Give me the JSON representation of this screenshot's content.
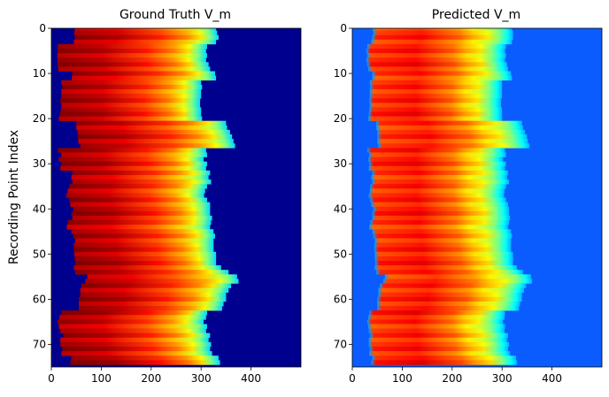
{
  "chart_data": [
    {
      "type": "heatmap",
      "title": "Ground Truth V_m",
      "xlabel": "",
      "ylabel": "Recording Point Index",
      "xlim": [
        0,
        500
      ],
      "ylim": [
        75,
        0
      ],
      "xticks": [
        0,
        100,
        200,
        300,
        400
      ],
      "yticks": [
        0,
        10,
        20,
        30,
        40,
        50,
        60,
        70
      ],
      "colormap": "jet",
      "background_color": "#00008f",
      "rows": 75,
      "cols": 500,
      "onset": [
        47,
        46,
        47,
        45,
        13,
        12,
        12,
        12,
        12,
        14,
        42,
        41,
        20,
        22,
        20,
        20,
        18,
        20,
        19,
        17,
        15,
        50,
        50,
        53,
        53,
        54,
        58,
        13,
        20,
        15,
        20,
        18,
        42,
        40,
        42,
        36,
        33,
        30,
        36,
        38,
        44,
        40,
        42,
        33,
        31,
        40,
        44,
        48,
        45,
        45,
        46,
        47,
        48,
        45,
        48,
        72,
        68,
        60,
        58,
        58,
        55,
        55,
        55,
        20,
        16,
        12,
        15,
        18,
        24,
        18,
        18,
        22,
        20,
        40,
        38
      ],
      "front": [
        330,
        332,
        335,
        330,
        312,
        310,
        312,
        310,
        315,
        318,
        328,
        330,
        300,
        302,
        300,
        300,
        298,
        298,
        300,
        300,
        302,
        350,
        352,
        358,
        362,
        365,
        368,
        310,
        312,
        305,
        312,
        310,
        318,
        315,
        320,
        312,
        308,
        306,
        312,
        318,
        318,
        318,
        322,
        320,
        318,
        325,
        328,
        325,
        325,
        325,
        330,
        330,
        330,
        340,
        355,
        372,
        375,
        360,
        355,
        350,
        350,
        345,
        342,
        312,
        310,
        305,
        312,
        310,
        318,
        315,
        320,
        318,
        322,
        335,
        338
      ]
    },
    {
      "type": "heatmap",
      "title": "Predicted V_m",
      "xlabel": "",
      "ylabel": "",
      "xlim": [
        0,
        500
      ],
      "ylim": [
        75,
        0
      ],
      "xticks": [
        0,
        100,
        200,
        300,
        400
      ],
      "yticks": [
        0,
        10,
        20,
        30,
        40,
        50,
        60,
        70
      ],
      "colormap": "jet",
      "background_color": "#0a5cff",
      "rows": 75,
      "cols": 500,
      "onset": [
        40,
        42,
        40,
        38,
        30,
        28,
        30,
        28,
        30,
        32,
        40,
        40,
        35,
        36,
        35,
        35,
        34,
        35,
        34,
        33,
        32,
        48,
        48,
        50,
        50,
        50,
        52,
        30,
        34,
        32,
        34,
        33,
        40,
        38,
        40,
        36,
        35,
        33,
        36,
        38,
        42,
        40,
        40,
        36,
        34,
        40,
        42,
        45,
        44,
        44,
        45,
        45,
        46,
        45,
        48,
        65,
        62,
        55,
        52,
        52,
        50,
        50,
        50,
        34,
        32,
        30,
        32,
        33,
        36,
        33,
        33,
        35,
        34,
        40,
        38
      ],
      "front": [
        320,
        322,
        322,
        320,
        308,
        306,
        308,
        306,
        310,
        312,
        318,
        320,
        300,
        300,
        300,
        300,
        298,
        298,
        300,
        300,
        300,
        340,
        342,
        346,
        350,
        352,
        355,
        306,
        308,
        302,
        308,
        306,
        312,
        310,
        314,
        308,
        305,
        304,
        308,
        312,
        314,
        314,
        316,
        314,
        312,
        318,
        320,
        318,
        318,
        318,
        322,
        322,
        322,
        330,
        342,
        358,
        360,
        348,
        344,
        340,
        340,
        336,
        334,
        306,
        305,
        302,
        306,
        305,
        312,
        310,
        314,
        312,
        316,
        328,
        330
      ]
    }
  ]
}
